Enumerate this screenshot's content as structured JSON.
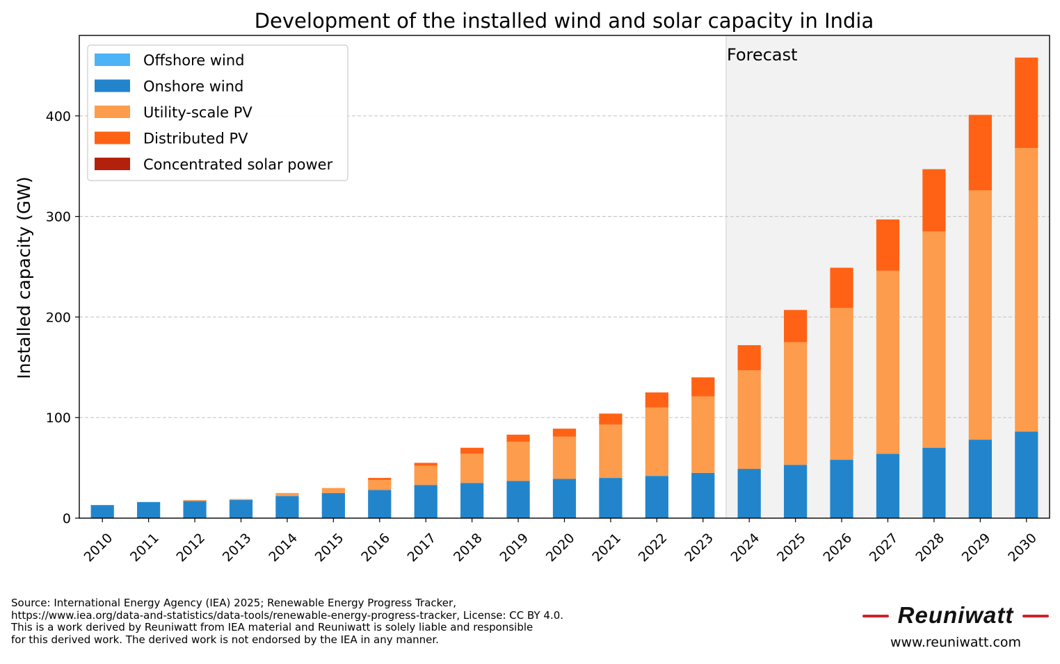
{
  "chart_data": {
    "type": "bar",
    "stacked": true,
    "title": "Development of the installed wind and solar capacity in India",
    "xlabel": "",
    "ylabel": "Installed capacity (GW)",
    "ylim": [
      0,
      480
    ],
    "yticks": [
      0,
      100,
      200,
      300,
      400
    ],
    "grid": "horizontal dashed",
    "legend_position": "top-left",
    "forecast": {
      "label": "Forecast",
      "start_category": "2024"
    },
    "categories": [
      "2010",
      "2011",
      "2012",
      "2013",
      "2014",
      "2015",
      "2016",
      "2017",
      "2018",
      "2019",
      "2020",
      "2021",
      "2022",
      "2023",
      "2024",
      "2025",
      "2026",
      "2027",
      "2028",
      "2029",
      "2030"
    ],
    "series": [
      {
        "name": "Offshore wind",
        "color": "#4db3f7",
        "values": [
          0,
          0,
          0,
          0,
          0,
          0,
          0,
          0,
          0,
          0,
          0,
          0,
          0,
          0,
          0,
          0,
          0,
          0,
          0,
          0,
          0
        ]
      },
      {
        "name": "Onshore wind",
        "color": "#2285cc",
        "values": [
          13,
          16,
          17,
          18,
          22,
          25,
          28,
          33,
          35,
          37,
          39,
          40,
          42,
          45,
          49,
          53,
          58,
          64,
          70,
          78,
          86
        ]
      },
      {
        "name": "Utility-scale PV",
        "color": "#fd9c4c",
        "values": [
          0,
          0,
          1,
          1,
          3,
          5,
          10,
          19,
          29,
          39,
          42,
          53,
          68,
          76,
          98,
          122,
          151,
          182,
          215,
          248,
          282
        ]
      },
      {
        "name": "Distributed PV",
        "color": "#ff6214",
        "values": [
          0,
          0,
          0,
          0,
          0,
          0,
          2,
          3,
          6,
          7,
          8,
          11,
          15,
          19,
          25,
          32,
          40,
          51,
          62,
          75,
          90
        ]
      },
      {
        "name": "Concentrated solar power",
        "color": "#b3200c",
        "values": [
          0,
          0,
          0,
          0,
          0,
          0,
          0,
          0,
          0,
          0,
          0,
          0,
          0,
          0,
          0,
          0,
          0,
          0,
          0,
          0,
          0
        ]
      }
    ]
  },
  "footer": {
    "source_lines": [
      "Source: International Energy Agency (IEA) 2025; Renewable Energy Progress Tracker,",
      "https://www.iea.org/data-and-statistics/data-tools/renewable-energy-progress-tracker, License: CC BY 4.0.",
      "This is a work derived by Reuniwatt from IEA material and Reuniwatt is solely liable and responsible",
      "for this derived work. The derived work is not endorsed by the IEA in any manner."
    ],
    "logo_text": "Reuniwatt",
    "logo_url": "www.reuniwatt.com",
    "logo_accent": "#d0202b"
  }
}
